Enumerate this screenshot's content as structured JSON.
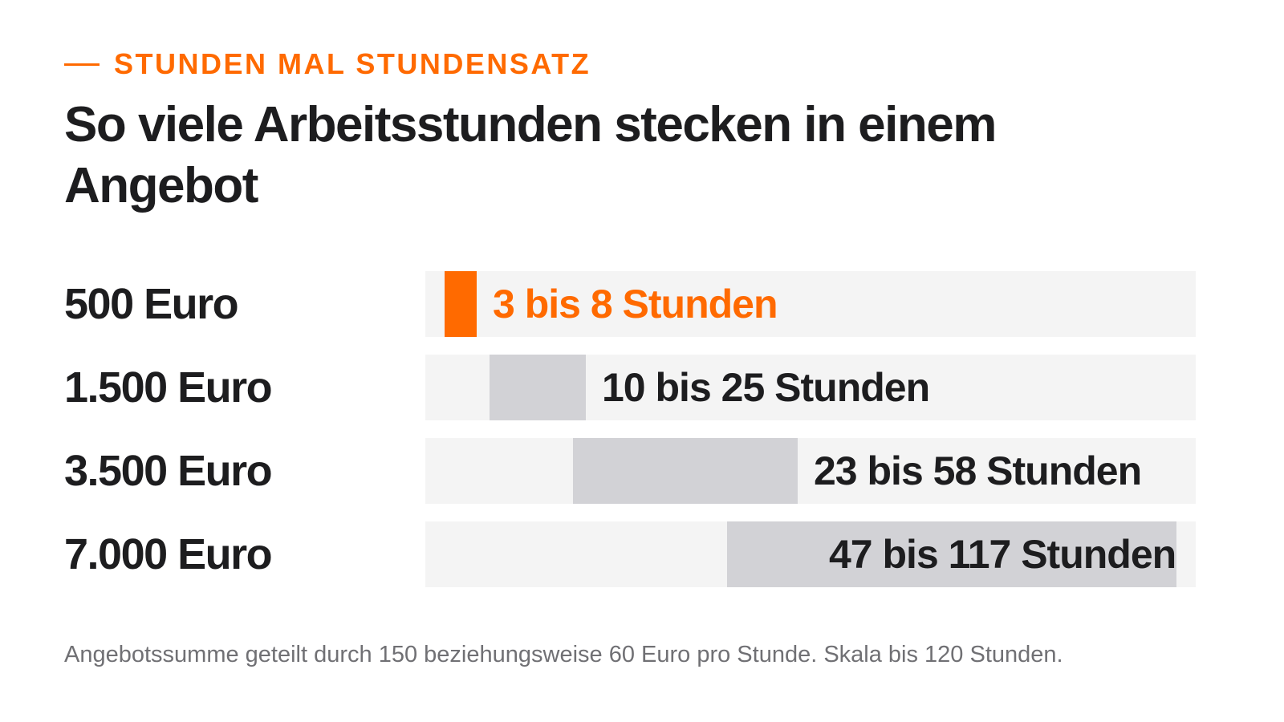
{
  "header": {
    "eyebrow": "STUNDEN MAL STUNDENSATZ",
    "title": "So viele Arbeitsstunden stecken in einem Angebot"
  },
  "footnote": "Angebotssumme geteilt durch 150 beziehungsweise 60 Euro pro Stunde. Skala bis 120 Stunden.",
  "colors": {
    "accent": "#ff6a00",
    "track": "#f4f4f4",
    "range_bar": "#d2d2d6",
    "text": "#1d1d1f",
    "muted_text": "#707074"
  },
  "chart_data": {
    "type": "bar",
    "orientation": "horizontal-range",
    "xlim": [
      0,
      120
    ],
    "categories": [
      "500 Euro",
      "1.500 Euro",
      "3.500 Euro",
      "7.000 Euro"
    ],
    "ranges": [
      {
        "category": "500 Euro",
        "low": 3,
        "high": 8,
        "label": "3 bis 8 Stunden",
        "highlight": true
      },
      {
        "category": "1.500 Euro",
        "low": 10,
        "high": 25,
        "label": "10 bis 25 Stunden",
        "highlight": false
      },
      {
        "category": "3.500 Euro",
        "low": 23,
        "high": 58,
        "label": "23 bis 58 Stunden",
        "highlight": false
      },
      {
        "category": "7.000 Euro",
        "low": 47,
        "high": 117,
        "label": "47 bis 117 Stunden",
        "highlight": false
      }
    ],
    "grid": false,
    "legend": "none"
  }
}
